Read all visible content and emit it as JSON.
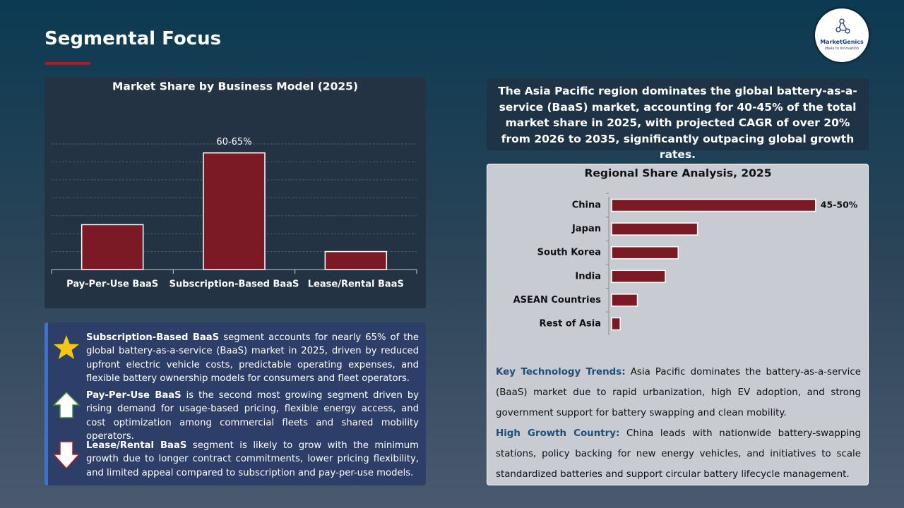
{
  "header": {
    "title": "Segmental Focus"
  },
  "logo": {
    "name": "MarketGenics",
    "tagline": "Ideas to Innovation"
  },
  "summary": "The Asia Pacific region dominates the global battery-as-a-service (BaaS) market, accounting for 40-45% of the total market share in 2025, with projected CAGR of over 20% from 2026 to 2035, significantly outpacing global growth rates.",
  "insights": [
    {
      "lead": "Subscription-Based BaaS",
      "text": "segment accounts for nearly 65% of the global battery-as-a-service (BaaS) market in 2025, driven by reduced upfront electric vehicle costs, predictable operating expenses, and flexible battery ownership models for consumers and fleet operators."
    },
    {
      "lead": "Pay-Per-Use BaaS",
      "text": "is the second most growing segment driven by rising demand for usage-based pricing, flexible energy access, and cost optimization among commercial fleets and shared mobility operators."
    },
    {
      "lead": "Lease/Rental BaaS",
      "text": "segment is likely to grow with the minimum growth due to longer contract commitments, lower pricing flexibility, and limited appeal compared to subscription and pay-per-use models."
    }
  ],
  "trends": [
    {
      "lead": "Key Technology Trends:",
      "text": "Asia Pacific dominates the battery-as-a-service (BaaS) market due to rapid urbanization, high EV adoption, and strong government support for battery swapping and clean mobility."
    },
    {
      "lead": "High Growth Country:",
      "text": "China leads with nationwide battery-swapping stations, policy backing for new energy vehicles, and initiatives to scale standardized batteries and support circular battery lifecycle management."
    }
  ],
  "chart_data": [
    {
      "type": "bar",
      "title": "Market Share by Business Model (2025)",
      "categories": [
        "Pay-Per-Use BaaS",
        "Subscription-Based BaaS",
        "Lease/Rental BaaS"
      ],
      "values": [
        25,
        65,
        10
      ],
      "value_labels": [
        null,
        "60-65%",
        null
      ],
      "color": "#7b1a24",
      "ylim": [
        0,
        70
      ],
      "yticks": [
        0,
        10,
        20,
        30,
        40,
        50,
        60,
        70
      ],
      "grid": true
    },
    {
      "type": "bar",
      "horizontal": true,
      "title": "Regional Share Analysis, 2025",
      "categories": [
        "China",
        "Japan",
        "South Korea",
        "India",
        "ASEAN Countries",
        "Rest of Asia"
      ],
      "values": [
        47.5,
        20,
        15.5,
        12.5,
        6,
        2
      ],
      "value_labels": [
        "45-50%",
        null,
        null,
        null,
        null,
        null
      ],
      "color": "#7b1a24",
      "xlim": [
        0,
        50
      ],
      "grid": false
    }
  ]
}
